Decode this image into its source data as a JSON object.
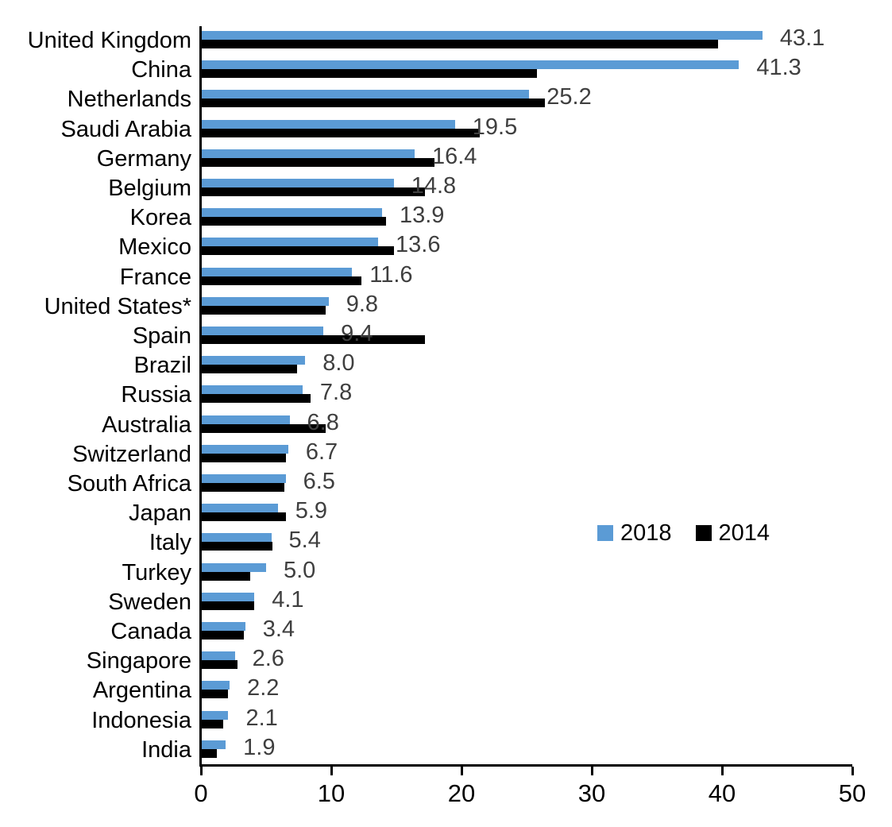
{
  "chart_data": {
    "type": "bar",
    "orientation": "horizontal",
    "title": "",
    "xlabel": "",
    "ylabel": "",
    "xlim": [
      0,
      50
    ],
    "x_ticks": [
      "0",
      "10",
      "20",
      "30",
      "40",
      "50"
    ],
    "grid": false,
    "legend_position": "middle-right",
    "categories": [
      "United Kingdom",
      "China",
      "Netherlands",
      "Saudi Arabia",
      "Germany",
      "Belgium",
      "Korea",
      "Mexico",
      "France",
      "United States*",
      "Spain",
      "Brazil",
      "Russia",
      "Australia",
      "Switzerland",
      "South Africa",
      "Japan",
      "Italy",
      "Turkey",
      "Sweden",
      "Canada",
      "Singapore",
      "Argentina",
      "Indonesia",
      "India"
    ],
    "series": [
      {
        "name": "2018",
        "color": "#5B9BD5",
        "values": [
          43.1,
          41.3,
          25.2,
          19.5,
          16.4,
          14.8,
          13.9,
          13.6,
          11.6,
          9.8,
          9.4,
          8.0,
          7.8,
          6.8,
          6.7,
          6.5,
          5.9,
          5.4,
          5.0,
          4.1,
          3.4,
          2.6,
          2.2,
          2.1,
          1.9
        ]
      },
      {
        "name": "2014",
        "color": "#000000",
        "values": [
          39.7,
          25.8,
          26.4,
          21.4,
          17.9,
          17.2,
          14.2,
          14.8,
          12.3,
          9.6,
          17.2,
          7.4,
          8.4,
          9.6,
          6.5,
          6.4,
          6.5,
          5.5,
          3.8,
          4.1,
          3.3,
          2.8,
          2.1,
          1.7,
          1.2
        ]
      }
    ],
    "data_labels": {
      "series": "2018",
      "color": "#3f3f3f",
      "values": [
        "43.1",
        "41.3",
        "25.2",
        "19.5",
        "16.4",
        "14.8",
        "13.9",
        "13.6",
        "11.6",
        "9.8",
        "9.4",
        "8.0",
        "7.8",
        "6.8",
        "6.7",
        "6.5",
        "5.9",
        "5.4",
        "5.0",
        "4.1",
        "3.4",
        "2.6",
        "2.2",
        "2.1",
        "1.9"
      ]
    }
  }
}
